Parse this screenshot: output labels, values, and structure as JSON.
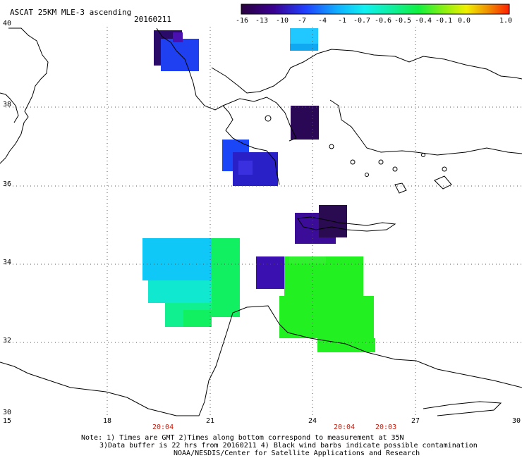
{
  "header": {
    "title": "ASCAT 25KM MLE-3 ascending",
    "date": "20160211"
  },
  "colorbar": {
    "ticks": [
      "-16",
      "-13",
      "-10",
      "-7",
      "-4",
      "-1",
      "-0.7",
      "-0.6",
      "-0.5",
      "-0.4",
      "-0.1",
      "0.0",
      "1.0"
    ],
    "colors": [
      "#2a0040",
      "#3a0070",
      "#2a10b0",
      "#1a40ff",
      "#1090ff",
      "#10e0f0",
      "#10f0b0",
      "#10f040",
      "#50f020",
      "#b0f010",
      "#f0e000",
      "#f08000",
      "#ff2000"
    ]
  },
  "axes": {
    "lon_ticks": [
      "15",
      "18",
      "21",
      "24",
      "27",
      "30"
    ],
    "lat_ticks": [
      "40",
      "38",
      "36",
      "34",
      "32",
      "30"
    ]
  },
  "times": [
    "20:04",
    "20:04",
    "20:03"
  ],
  "notes": [
    "Note: 1) Times are GMT 2)Times along bottom correspond to measurement at 35N",
    "3)Data buffer is 22 hrs from 20160211 4) Black wind barbs indicate possible contamination",
    "NOAA/NESDIS/Center for Satellite Applications and Research"
  ],
  "swaths": [
    {
      "name": "north-adriatic",
      "color": "#2a0b6a",
      "color2": "#1e40f0"
    },
    {
      "name": "north-aegean",
      "color": "#10a8f0",
      "color2": "#20c8ff"
    },
    {
      "name": "central-aegean",
      "color": "#2a0856"
    },
    {
      "name": "peloponnese",
      "color": "#2a20c8",
      "color2": "#1a46f8"
    },
    {
      "name": "crete",
      "color": "#3a0c98",
      "color2": "#2a0a50"
    },
    {
      "name": "libya-west",
      "color": "#10c8f8",
      "color2": "#10f060"
    },
    {
      "name": "libya-square",
      "color": "#3a10b0"
    },
    {
      "name": "libya-east",
      "color": "#22f020"
    }
  ]
}
